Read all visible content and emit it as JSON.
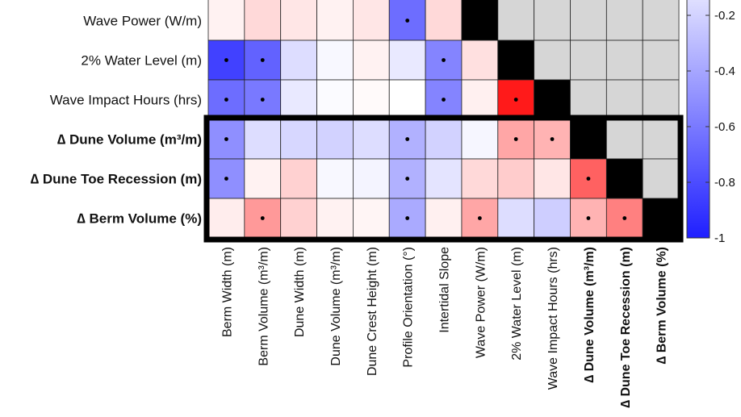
{
  "chart_data": {
    "type": "heatmap",
    "row_labels": [
      {
        "text": "Wave Power (W/m)",
        "bold": false
      },
      {
        "text": "2% Water Level (m)",
        "bold": false
      },
      {
        "text": "Wave Impact Hours (hrs)",
        "bold": false
      },
      {
        "text": "∆ Dune Volume (m³/m)",
        "bold": true
      },
      {
        "text": "∆ Dune Toe Recession (m)",
        "bold": true
      },
      {
        "text": "∆ Berm Volume (%)",
        "bold": true
      }
    ],
    "col_labels": [
      {
        "text": "Berm Width (m)",
        "bold": false
      },
      {
        "text": "Berm Volume (m³/m)",
        "bold": false
      },
      {
        "text": "Dune Width (m)",
        "bold": false
      },
      {
        "text": "Dune Volume (m³/m)",
        "bold": false
      },
      {
        "text": "Dune Crest Height (m)",
        "bold": false
      },
      {
        "text": "Profile Orientation (°)",
        "bold": false
      },
      {
        "text": "Intertidal Slope",
        "bold": false
      },
      {
        "text": "Wave Power (W/m)",
        "bold": false
      },
      {
        "text": "2% Water Level (m)",
        "bold": false
      },
      {
        "text": "Wave Impact Hours (hrs)",
        "bold": false
      },
      {
        "text": "∆ Dune Volume (m³/m)",
        "bold": true
      },
      {
        "text": "∆ Dune Toe Recession (m)",
        "bold": true
      },
      {
        "text": "∆ Berm Volume (%)",
        "bold": true
      }
    ],
    "values": [
      [
        0.05,
        0.15,
        0.1,
        0.05,
        0.1,
        -0.65,
        0.15,
        "diag",
        null,
        null,
        null,
        null,
        null
      ],
      [
        -0.85,
        -0.7,
        -0.15,
        -0.03,
        0.05,
        -0.1,
        -0.55,
        0.12,
        "diag",
        null,
        null,
        null,
        null
      ],
      [
        -0.65,
        -0.6,
        -0.1,
        -0.02,
        0.02,
        0.0,
        -0.55,
        0.06,
        0.9,
        "diag",
        null,
        null,
        null
      ],
      [
        -0.5,
        -0.15,
        -0.18,
        -0.2,
        -0.15,
        -0.35,
        -0.2,
        -0.04,
        0.35,
        0.3,
        "diag",
        null,
        null
      ],
      [
        -0.5,
        0.05,
        0.18,
        -0.03,
        -0.05,
        -0.35,
        -0.12,
        0.15,
        0.2,
        0.1,
        0.62,
        "diag",
        null
      ],
      [
        0.07,
        0.4,
        0.18,
        0.05,
        0.04,
        -0.38,
        0.06,
        0.35,
        -0.15,
        -0.22,
        0.3,
        0.5,
        "diag"
      ]
    ],
    "significant": [
      [
        false,
        false,
        false,
        false,
        false,
        true,
        false,
        false,
        false,
        false,
        false,
        false,
        false
      ],
      [
        true,
        true,
        false,
        false,
        false,
        false,
        true,
        false,
        false,
        false,
        false,
        false,
        false
      ],
      [
        true,
        true,
        false,
        false,
        false,
        false,
        true,
        false,
        true,
        false,
        false,
        false,
        false
      ],
      [
        true,
        false,
        false,
        false,
        false,
        true,
        false,
        false,
        true,
        true,
        false,
        false,
        false
      ],
      [
        true,
        false,
        false,
        false,
        false,
        true,
        false,
        false,
        false,
        false,
        true,
        false,
        false
      ],
      [
        false,
        true,
        false,
        false,
        false,
        true,
        false,
        true,
        false,
        false,
        true,
        true,
        false
      ]
    ],
    "colorbar": {
      "ticks": [
        -0.2,
        -0.4,
        -0.6,
        -0.8,
        -1
      ],
      "tick_labels": [
        "-0.2",
        "-0.4",
        "-0.6",
        "-0.8",
        "-1"
      ],
      "range": [
        -1,
        0
      ]
    },
    "colors": {
      "negative": "#1f1fff",
      "neutral": "#ffffff",
      "positive": "#ff0000",
      "diagonal": "#000000",
      "masked": "#d6d6d6",
      "group_box": "#000000"
    }
  }
}
